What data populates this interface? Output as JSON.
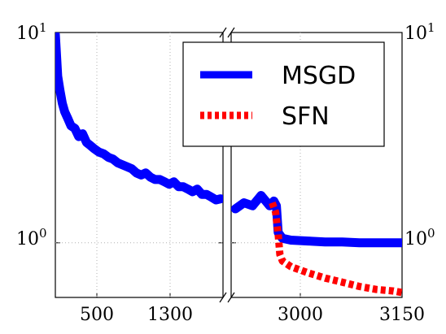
{
  "chart_data": {
    "type": "line",
    "yscale": "log",
    "ylim": [
      0.55,
      10
    ],
    "y_ticks": [
      {
        "value": 10,
        "base": "10",
        "exp": "1"
      },
      {
        "value": 1,
        "base": "10",
        "exp": "0"
      }
    ],
    "grid": true,
    "broken_x_axis": true,
    "x_tick_labels": {
      "left_panel": [
        "500",
        "1300"
      ],
      "right_panel": [
        "3000",
        "3150"
      ]
    },
    "legend": {
      "placement": "top-right",
      "entries": [
        {
          "label": "MSGD",
          "color": "#0000ff",
          "style": "solid"
        },
        {
          "label": "SFN",
          "color": "#ff0000",
          "style": "dotted"
        }
      ]
    },
    "series": [
      {
        "name": "MSGD",
        "color": "#0000ff",
        "panel_left": {
          "x": [
            0,
            30,
            60,
            90,
            120,
            160,
            200,
            250,
            300,
            350,
            400,
            450,
            500,
            560,
            620,
            680,
            740,
            800,
            860,
            920,
            980,
            1040,
            1100,
            1160,
            1220,
            1280,
            1340,
            1400,
            1460,
            1520,
            1580,
            1640,
            1700,
            1760,
            1820,
            1880,
            1940,
            2000,
            2060,
            2120
          ],
          "y": [
            9.8,
            6.2,
            5.3,
            4.6,
            4.2,
            3.9,
            3.6,
            3.5,
            3.2,
            3.3,
            3.0,
            2.9,
            2.8,
            2.7,
            2.65,
            2.55,
            2.5,
            2.4,
            2.35,
            2.3,
            2.25,
            2.15,
            2.1,
            2.15,
            2.05,
            2.0,
            2.0,
            1.95,
            1.9,
            1.95,
            1.85,
            1.85,
            1.8,
            1.75,
            1.8,
            1.7,
            1.7,
            1.65,
            1.6,
            1.62
          ]
        },
        "panel_right": {
          "x": [
            2955,
            2965,
            2975,
            2985,
            2995,
            3000,
            3003,
            3005,
            3010,
            3020,
            3040,
            3060,
            3080,
            3100,
            3120,
            3150
          ],
          "y": [
            1.45,
            1.55,
            1.5,
            1.68,
            1.5,
            1.58,
            1.5,
            1.12,
            1.05,
            1.03,
            1.02,
            1.01,
            1.01,
            1.0,
            1.0,
            1.0
          ]
        }
      },
      {
        "name": "SFN",
        "color": "#ff0000",
        "panel_right": {
          "x": [
            2998,
            3002,
            3005,
            3007,
            3010,
            3020,
            3040,
            3060,
            3080,
            3100,
            3120,
            3140,
            3150
          ],
          "y": [
            1.55,
            1.4,
            1.1,
            0.88,
            0.82,
            0.77,
            0.72,
            0.68,
            0.65,
            0.62,
            0.6,
            0.59,
            0.58
          ]
        }
      }
    ]
  }
}
